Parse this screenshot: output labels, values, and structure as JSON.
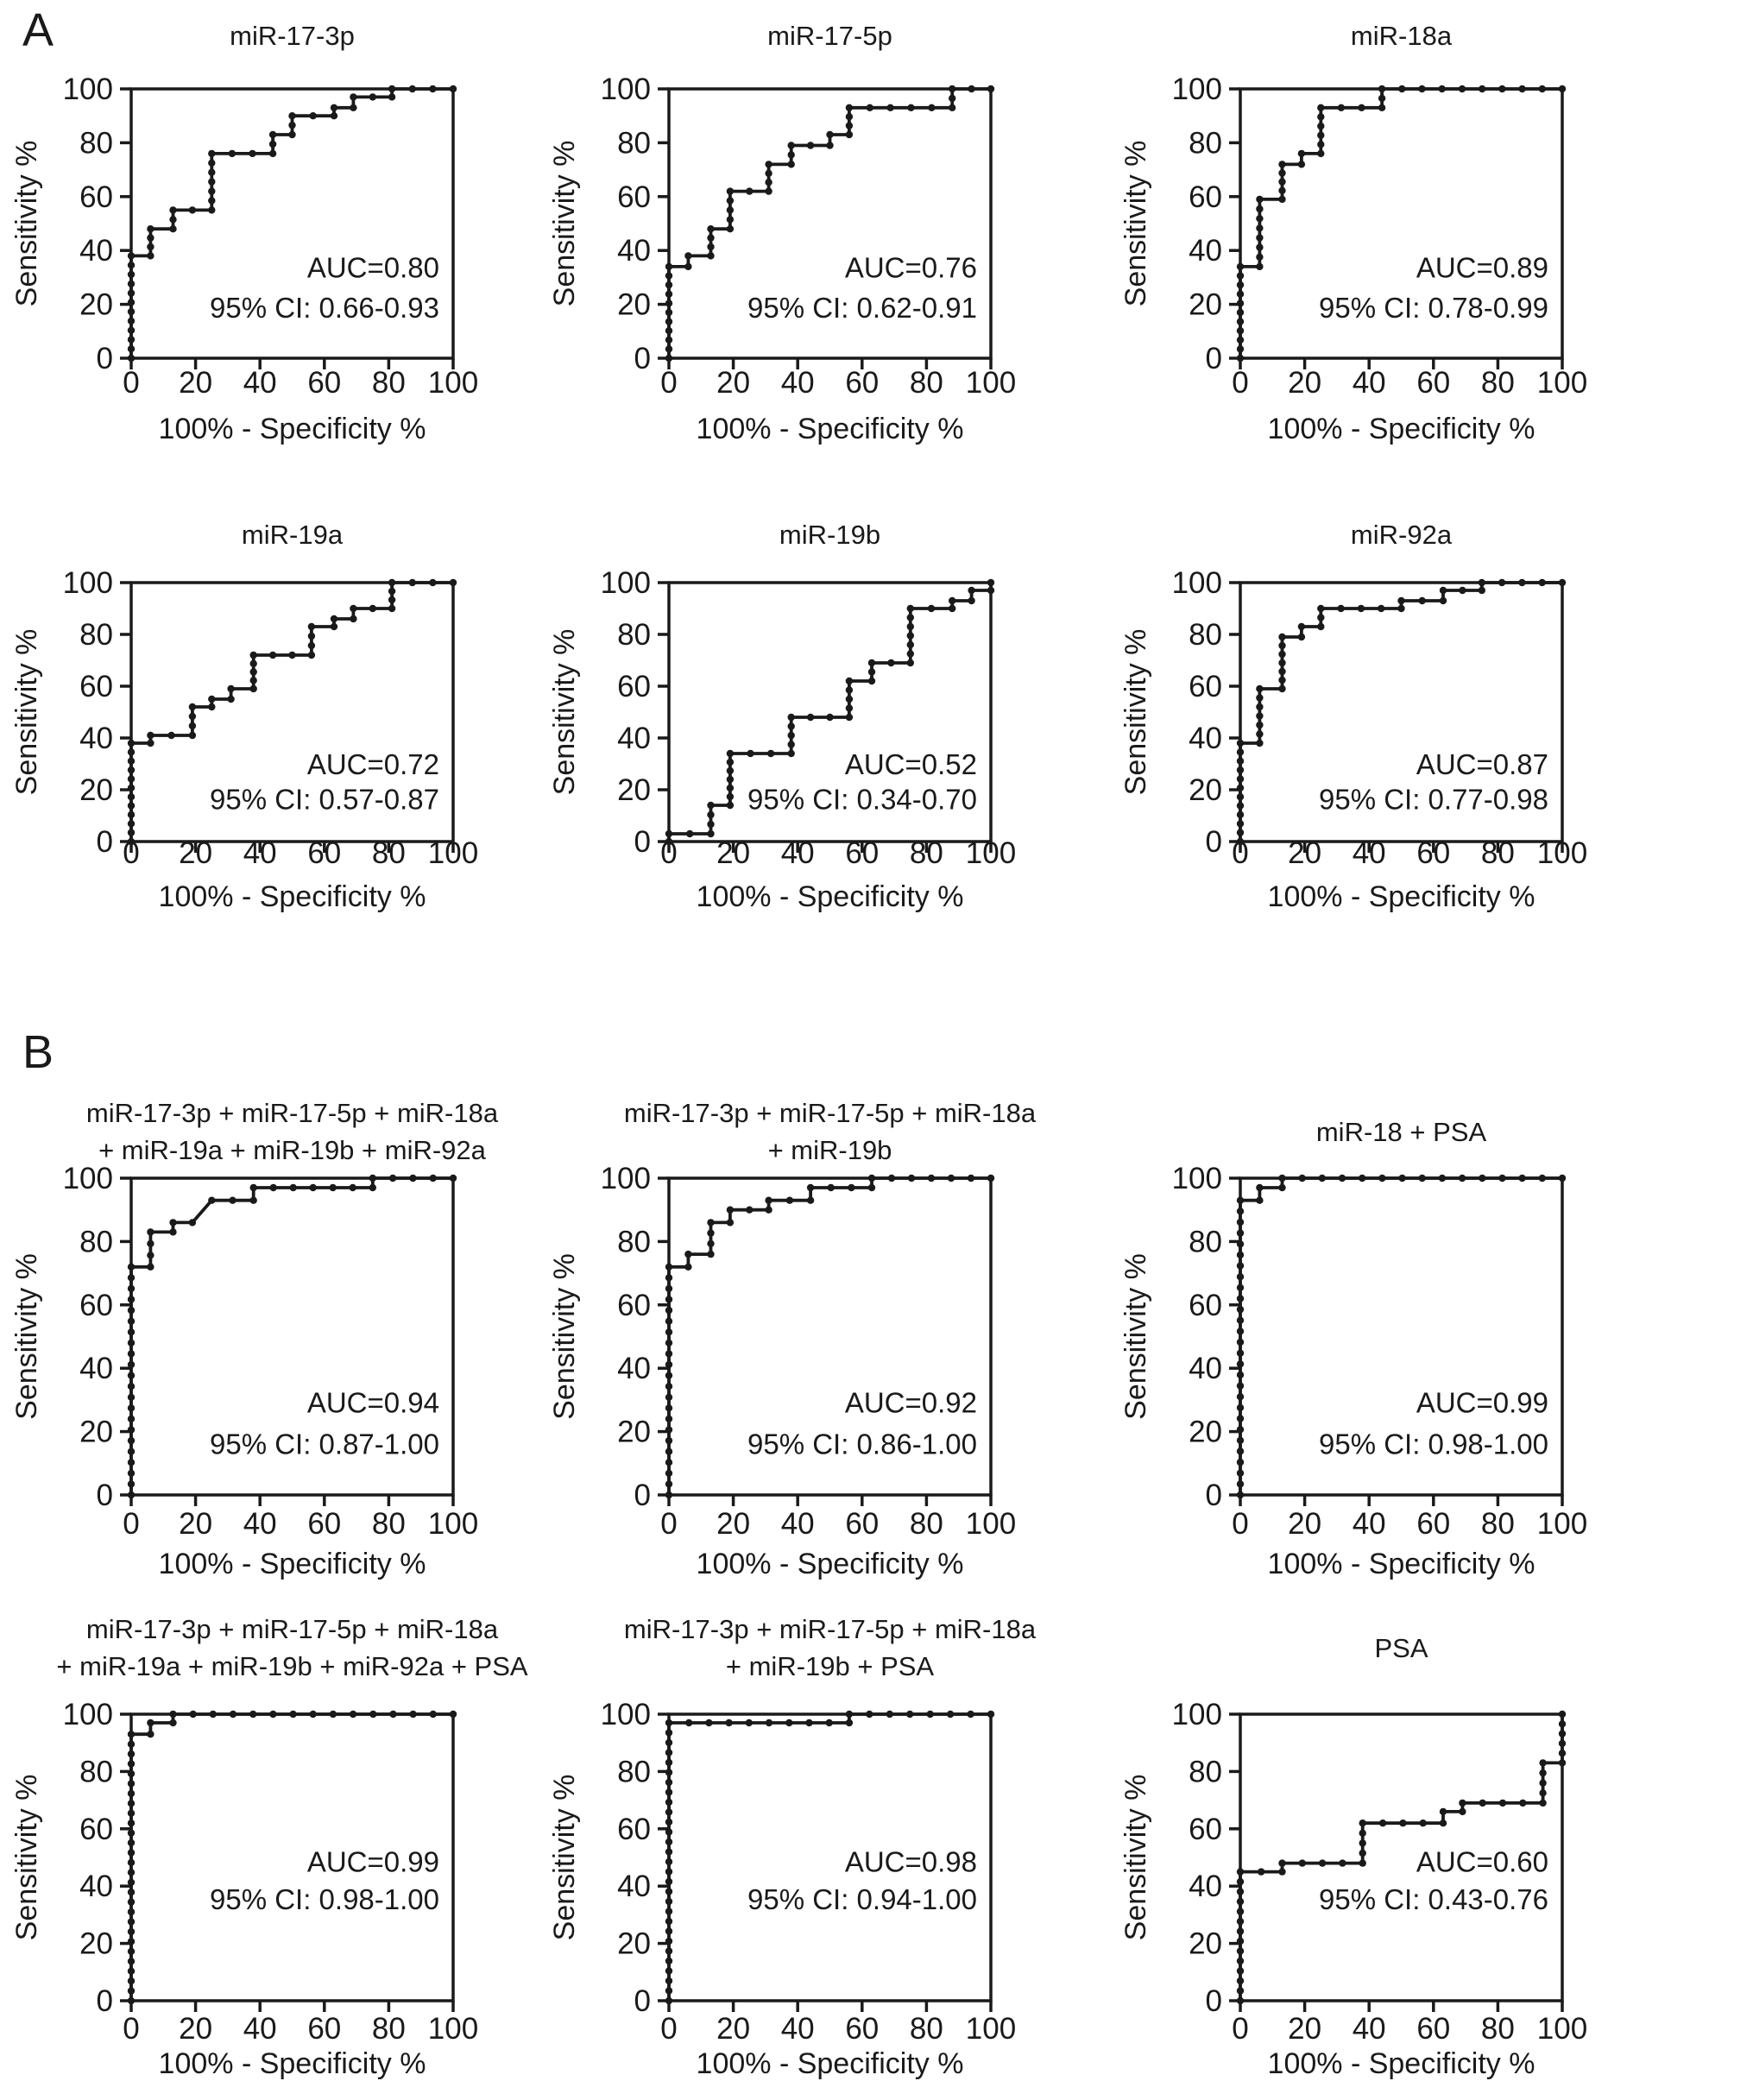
{
  "figure": {
    "section_a_label": "A",
    "section_b_label": "B",
    "background_color": "#ffffff",
    "line_color": "#1a1a1a",
    "text_color": "#1a1a1a",
    "axis": {
      "xlabel": "100% - Specificity %",
      "ylabel": "Sensitivity %",
      "x_ticks": [
        0,
        20,
        40,
        60,
        80,
        100
      ],
      "y_ticks": [
        0,
        20,
        40,
        60,
        80,
        100
      ],
      "xlim": [
        0,
        100
      ],
      "ylim": [
        0,
        100
      ]
    }
  },
  "chart_data": [
    {
      "type": "line",
      "panel": "A1",
      "section": "A",
      "title_lines": [
        "miR-17-3p"
      ],
      "auc_label": "AUC=0.80",
      "ci_label": "95% CI: 0.66-0.93",
      "xlabel": "100% - Specificity %",
      "ylabel": "Sensitivity %",
      "xlim": [
        0,
        100
      ],
      "ylim": [
        0,
        100
      ],
      "x_ticks": [
        0,
        20,
        40,
        60,
        80,
        100
      ],
      "y_ticks": [
        0,
        20,
        40,
        60,
        80,
        100
      ],
      "points": [
        [
          0,
          0
        ],
        [
          0,
          38
        ],
        [
          6,
          38
        ],
        [
          6,
          48
        ],
        [
          13,
          48
        ],
        [
          13,
          55
        ],
        [
          25,
          55
        ],
        [
          25,
          76
        ],
        [
          44,
          76
        ],
        [
          44,
          83
        ],
        [
          50,
          83
        ],
        [
          50,
          90
        ],
        [
          63,
          90
        ],
        [
          63,
          93
        ],
        [
          69,
          93
        ],
        [
          69,
          97
        ],
        [
          81,
          97
        ],
        [
          81,
          100
        ],
        [
          100,
          100
        ]
      ]
    },
    {
      "type": "line",
      "panel": "A2",
      "section": "A",
      "title_lines": [
        "miR-17-5p"
      ],
      "auc_label": "AUC=0.76",
      "ci_label": "95% CI: 0.62-0.91",
      "xlabel": "100% - Specificity %",
      "ylabel": "Sensitivity %",
      "xlim": [
        0,
        100
      ],
      "ylim": [
        0,
        100
      ],
      "x_ticks": [
        0,
        20,
        40,
        60,
        80,
        100
      ],
      "y_ticks": [
        0,
        20,
        40,
        60,
        80,
        100
      ],
      "points": [
        [
          0,
          0
        ],
        [
          0,
          34
        ],
        [
          6,
          34
        ],
        [
          6,
          38
        ],
        [
          13,
          38
        ],
        [
          13,
          48
        ],
        [
          19,
          48
        ],
        [
          19,
          62
        ],
        [
          31,
          62
        ],
        [
          31,
          72
        ],
        [
          38,
          72
        ],
        [
          38,
          79
        ],
        [
          50,
          79
        ],
        [
          50,
          83
        ],
        [
          56,
          83
        ],
        [
          56,
          93
        ],
        [
          88,
          93
        ],
        [
          88,
          100
        ],
        [
          100,
          100
        ]
      ]
    },
    {
      "type": "line",
      "panel": "A3",
      "section": "A",
      "title_lines": [
        "miR-18a"
      ],
      "auc_label": "AUC=0.89",
      "ci_label": "95% CI: 0.78-0.99",
      "xlabel": "100% - Specificity %",
      "ylabel": "Sensitivity %",
      "xlim": [
        0,
        100
      ],
      "ylim": [
        0,
        100
      ],
      "x_ticks": [
        0,
        20,
        40,
        60,
        80,
        100
      ],
      "y_ticks": [
        0,
        20,
        40,
        60,
        80,
        100
      ],
      "points": [
        [
          0,
          0
        ],
        [
          0,
          34
        ],
        [
          6,
          34
        ],
        [
          6,
          59
        ],
        [
          13,
          59
        ],
        [
          13,
          72
        ],
        [
          19,
          72
        ],
        [
          19,
          76
        ],
        [
          25,
          76
        ],
        [
          25,
          93
        ],
        [
          44,
          93
        ],
        [
          44,
          100
        ],
        [
          100,
          100
        ]
      ]
    },
    {
      "type": "line",
      "panel": "A4",
      "section": "A",
      "title_lines": [
        "miR-19a"
      ],
      "auc_label": "AUC=0.72",
      "ci_label": "95% CI: 0.57-0.87",
      "xlabel": "100% - Specificity %",
      "ylabel": "Sensitivity %",
      "xlim": [
        0,
        100
      ],
      "ylim": [
        0,
        100
      ],
      "x_ticks": [
        0,
        20,
        40,
        60,
        80,
        100
      ],
      "y_ticks": [
        0,
        20,
        40,
        60,
        80,
        100
      ],
      "points": [
        [
          0,
          0
        ],
        [
          0,
          38
        ],
        [
          6,
          38
        ],
        [
          6,
          41
        ],
        [
          19,
          41
        ],
        [
          19,
          52
        ],
        [
          25,
          52
        ],
        [
          25,
          55
        ],
        [
          31,
          55
        ],
        [
          31,
          59
        ],
        [
          38,
          59
        ],
        [
          38,
          72
        ],
        [
          56,
          72
        ],
        [
          56,
          83
        ],
        [
          63,
          83
        ],
        [
          63,
          86
        ],
        [
          69,
          86
        ],
        [
          69,
          90
        ],
        [
          81,
          90
        ],
        [
          81,
          100
        ],
        [
          100,
          100
        ]
      ]
    },
    {
      "type": "line",
      "panel": "A5",
      "section": "A",
      "title_lines": [
        "miR-19b"
      ],
      "auc_label": "AUC=0.52",
      "ci_label": "95% CI: 0.34-0.70",
      "xlabel": "100% - Specificity %",
      "ylabel": "Sensitivity %",
      "xlim": [
        0,
        100
      ],
      "ylim": [
        0,
        100
      ],
      "x_ticks": [
        0,
        20,
        40,
        60,
        80,
        100
      ],
      "y_ticks": [
        0,
        20,
        40,
        60,
        80,
        100
      ],
      "points": [
        [
          0,
          0
        ],
        [
          0,
          3
        ],
        [
          13,
          3
        ],
        [
          13,
          14
        ],
        [
          19,
          14
        ],
        [
          19,
          34
        ],
        [
          38,
          34
        ],
        [
          38,
          48
        ],
        [
          56,
          48
        ],
        [
          56,
          62
        ],
        [
          63,
          62
        ],
        [
          63,
          69
        ],
        [
          75,
          69
        ],
        [
          75,
          90
        ],
        [
          88,
          90
        ],
        [
          88,
          93
        ],
        [
          94,
          93
        ],
        [
          94,
          97
        ],
        [
          100,
          97
        ],
        [
          100,
          100
        ]
      ]
    },
    {
      "type": "line",
      "panel": "A6",
      "section": "A",
      "title_lines": [
        "miR-92a"
      ],
      "auc_label": "AUC=0.87",
      "ci_label": "95% CI: 0.77-0.98",
      "xlabel": "100% - Specificity %",
      "ylabel": "Sensitivity %",
      "xlim": [
        0,
        100
      ],
      "ylim": [
        0,
        100
      ],
      "x_ticks": [
        0,
        20,
        40,
        60,
        80,
        100
      ],
      "y_ticks": [
        0,
        20,
        40,
        60,
        80,
        100
      ],
      "points": [
        [
          0,
          0
        ],
        [
          0,
          38
        ],
        [
          6,
          38
        ],
        [
          6,
          59
        ],
        [
          13,
          59
        ],
        [
          13,
          79
        ],
        [
          19,
          79
        ],
        [
          19,
          83
        ],
        [
          25,
          83
        ],
        [
          25,
          90
        ],
        [
          50,
          90
        ],
        [
          50,
          93
        ],
        [
          63,
          93
        ],
        [
          63,
          97
        ],
        [
          75,
          97
        ],
        [
          75,
          100
        ],
        [
          100,
          100
        ]
      ]
    },
    {
      "type": "line",
      "panel": "B1",
      "section": "B",
      "title_lines": [
        "miR-17-3p + miR-17-5p + miR-18a",
        "+ miR-19a + miR-19b + miR-92a"
      ],
      "auc_label": "AUC=0.94",
      "ci_label": "95% CI: 0.87-1.00",
      "xlabel": "100% - Specificity %",
      "ylabel": "Sensitivity %",
      "xlim": [
        0,
        100
      ],
      "ylim": [
        0,
        100
      ],
      "x_ticks": [
        0,
        20,
        40,
        60,
        80,
        100
      ],
      "y_ticks": [
        0,
        20,
        40,
        60,
        80,
        100
      ],
      "points": [
        [
          0,
          0
        ],
        [
          0,
          72
        ],
        [
          6,
          72
        ],
        [
          6,
          83
        ],
        [
          13,
          83
        ],
        [
          13,
          86
        ],
        [
          19,
          86
        ],
        [
          25,
          93
        ],
        [
          38,
          93
        ],
        [
          38,
          97
        ],
        [
          75,
          97
        ],
        [
          75,
          100
        ],
        [
          100,
          100
        ]
      ]
    },
    {
      "type": "line",
      "panel": "B2",
      "section": "B",
      "title_lines": [
        "miR-17-3p + miR-17-5p + miR-18a",
        "+ miR-19b"
      ],
      "auc_label": "AUC=0.92",
      "ci_label": "95% CI: 0.86-1.00",
      "xlabel": "100% - Specificity %",
      "ylabel": "Sensitivity %",
      "xlim": [
        0,
        100
      ],
      "ylim": [
        0,
        100
      ],
      "x_ticks": [
        0,
        20,
        40,
        60,
        80,
        100
      ],
      "y_ticks": [
        0,
        20,
        40,
        60,
        80,
        100
      ],
      "points": [
        [
          0,
          0
        ],
        [
          0,
          72
        ],
        [
          6,
          72
        ],
        [
          6,
          76
        ],
        [
          13,
          76
        ],
        [
          13,
          86
        ],
        [
          19,
          86
        ],
        [
          19,
          90
        ],
        [
          31,
          90
        ],
        [
          31,
          93
        ],
        [
          44,
          93
        ],
        [
          44,
          97
        ],
        [
          63,
          97
        ],
        [
          63,
          100
        ],
        [
          100,
          100
        ]
      ]
    },
    {
      "type": "line",
      "panel": "B3",
      "section": "B",
      "title_lines": [
        "miR-18 + PSA"
      ],
      "auc_label": "AUC=0.99",
      "ci_label": "95% CI: 0.98-1.00",
      "xlabel": "100% - Specificity %",
      "ylabel": "Sensitivity %",
      "xlim": [
        0,
        100
      ],
      "ylim": [
        0,
        100
      ],
      "x_ticks": [
        0,
        20,
        40,
        60,
        80,
        100
      ],
      "y_ticks": [
        0,
        20,
        40,
        60,
        80,
        100
      ],
      "points": [
        [
          0,
          0
        ],
        [
          0,
          93
        ],
        [
          6,
          93
        ],
        [
          6,
          97
        ],
        [
          13,
          97
        ],
        [
          13,
          100
        ],
        [
          100,
          100
        ]
      ]
    },
    {
      "type": "line",
      "panel": "B4",
      "section": "B",
      "title_lines": [
        "miR-17-3p + miR-17-5p + miR-18a",
        "+ miR-19a + miR-19b + miR-92a + PSA"
      ],
      "auc_label": "AUC=0.99",
      "ci_label": "95% CI: 0.98-1.00",
      "xlabel": "100% - Specificity %",
      "ylabel": "Sensitivity %",
      "xlim": [
        0,
        100
      ],
      "ylim": [
        0,
        100
      ],
      "x_ticks": [
        0,
        20,
        40,
        60,
        80,
        100
      ],
      "y_ticks": [
        0,
        20,
        40,
        60,
        80,
        100
      ],
      "points": [
        [
          0,
          0
        ],
        [
          0,
          93
        ],
        [
          6,
          93
        ],
        [
          6,
          97
        ],
        [
          13,
          97
        ],
        [
          13,
          100
        ],
        [
          100,
          100
        ]
      ]
    },
    {
      "type": "line",
      "panel": "B5",
      "section": "B",
      "title_lines": [
        "miR-17-3p + miR-17-5p + miR-18a",
        "+ miR-19b + PSA"
      ],
      "auc_label": "AUC=0.98",
      "ci_label": "95% CI: 0.94-1.00",
      "xlabel": "100% - Specificity %",
      "ylabel": "Sensitivity %",
      "xlim": [
        0,
        100
      ],
      "ylim": [
        0,
        100
      ],
      "x_ticks": [
        0,
        20,
        40,
        60,
        80,
        100
      ],
      "y_ticks": [
        0,
        20,
        40,
        60,
        80,
        100
      ],
      "points": [
        [
          0,
          0
        ],
        [
          0,
          97
        ],
        [
          56,
          97
        ],
        [
          56,
          100
        ],
        [
          100,
          100
        ]
      ]
    },
    {
      "type": "line",
      "panel": "B6",
      "section": "B",
      "title_lines": [
        "PSA"
      ],
      "auc_label": "AUC=0.60",
      "ci_label": "95% CI: 0.43-0.76",
      "xlabel": "100% - Specificity %",
      "ylabel": "Sensitivity %",
      "xlim": [
        0,
        100
      ],
      "ylim": [
        0,
        100
      ],
      "x_ticks": [
        0,
        20,
        40,
        60,
        80,
        100
      ],
      "y_ticks": [
        0,
        20,
        40,
        60,
        80,
        100
      ],
      "points": [
        [
          0,
          0
        ],
        [
          0,
          45
        ],
        [
          13,
          45
        ],
        [
          13,
          48
        ],
        [
          38,
          48
        ],
        [
          38,
          62
        ],
        [
          63,
          62
        ],
        [
          63,
          66
        ],
        [
          69,
          66
        ],
        [
          69,
          69
        ],
        [
          94,
          69
        ],
        [
          94,
          83
        ],
        [
          100,
          83
        ],
        [
          100,
          100
        ]
      ]
    }
  ]
}
